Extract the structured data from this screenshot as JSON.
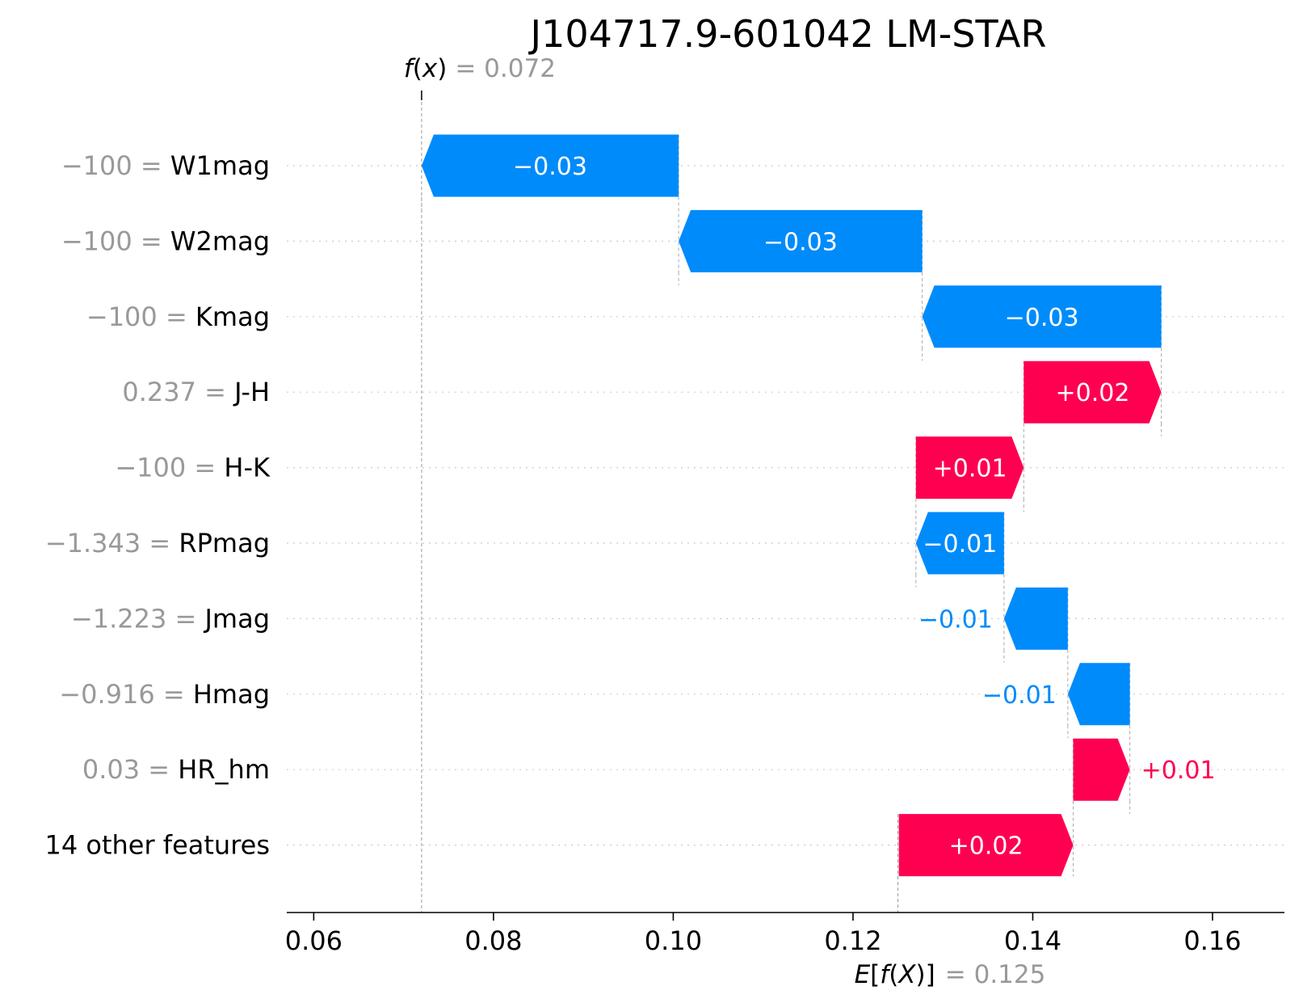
{
  "chart_data": {
    "type": "waterfall",
    "title": "J104717.9-601042 LM-STAR",
    "fx": {
      "label_func": "f",
      "label_var": "x",
      "label_eq": "= 0.072",
      "value": 0.072
    },
    "efx": {
      "label_E": "E",
      "label_open": "[",
      "label_func": "f",
      "label_paren_open": "(",
      "label_var": "X",
      "label_paren_close": ")",
      "label_close": "]",
      "label_eq": "= 0.125",
      "value": 0.125
    },
    "xlim": [
      0.057,
      0.168
    ],
    "xticks": [
      {
        "value": 0.06,
        "label": "0.06"
      },
      {
        "value": 0.08,
        "label": "0.08"
      },
      {
        "value": 0.1,
        "label": "0.10"
      },
      {
        "value": 0.12,
        "label": "0.12"
      },
      {
        "value": 0.14,
        "label": "0.14"
      },
      {
        "value": 0.16,
        "label": "0.16"
      }
    ],
    "features": [
      {
        "name": "W1mag",
        "value_text": "−100 =",
        "start": 0.1006,
        "end": 0.072,
        "label": "−0.03",
        "label_inside": true
      },
      {
        "name": "W2mag",
        "value_text": "−100 =",
        "start": 0.1277,
        "end": 0.1006,
        "label": "−0.03",
        "label_inside": true
      },
      {
        "name": "Kmag",
        "value_text": "−100 =",
        "start": 0.1543,
        "end": 0.1277,
        "label": "−0.03",
        "label_inside": true
      },
      {
        "name": "J-H",
        "value_text": "0.237 =",
        "start": 0.139,
        "end": 0.1543,
        "label": "+0.02",
        "label_inside": true
      },
      {
        "name": "H-K",
        "value_text": "−100 =",
        "start": 0.127,
        "end": 0.139,
        "label": "+0.01",
        "label_inside": true
      },
      {
        "name": "RPmag",
        "value_text": "−1.343 =",
        "start": 0.1368,
        "end": 0.127,
        "label": "−0.01",
        "label_inside": true
      },
      {
        "name": "Jmag",
        "value_text": "−1.223 =",
        "start": 0.1439,
        "end": 0.1368,
        "label": "−0.01",
        "label_inside": false
      },
      {
        "name": "Hmag",
        "value_text": "−0.916 =",
        "start": 0.1508,
        "end": 0.1439,
        "label": "−0.01",
        "label_inside": false
      },
      {
        "name": "HR_hm",
        "value_text": "0.03 =",
        "start": 0.1445,
        "end": 0.1508,
        "label": "+0.01",
        "label_inside": false
      },
      {
        "name": "14 other features",
        "value_text": "",
        "start": 0.1251,
        "end": 0.1445,
        "label": "+0.02",
        "label_inside": true
      }
    ],
    "colors": {
      "positive": "#ff0051",
      "negative": "#008bfb",
      "grid": "#cccccc",
      "axis": "#000000",
      "muted_text": "#999999"
    }
  }
}
